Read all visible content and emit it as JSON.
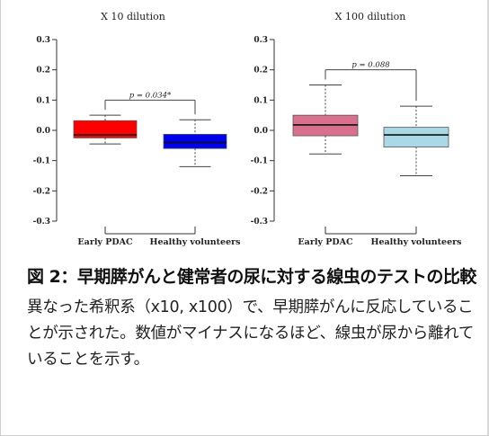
{
  "chart_data": [
    {
      "type": "box",
      "title": "X 10 dilution",
      "ylim": [
        -0.3,
        0.3
      ],
      "yticks": [
        "0.3",
        "0.2",
        "0.1",
        "0.0",
        "-0.1",
        "-0.2",
        "-0.3"
      ],
      "categories": [
        "Early PDAC",
        "Healthy volunteers"
      ],
      "boxes": [
        {
          "category": "Early PDAC",
          "min": -0.045,
          "q1": -0.025,
          "median": -0.015,
          "q3": 0.032,
          "max": 0.05,
          "color": "#ff0000"
        },
        {
          "category": "Healthy volunteers",
          "min": -0.12,
          "q1": -0.06,
          "median": -0.04,
          "q3": -0.013,
          "max": 0.035,
          "color": "#0000ee"
        }
      ],
      "annotation": "p = 0.034*",
      "annotation_y": 0.1
    },
    {
      "type": "box",
      "title": "X 100 dilution",
      "ylim": [
        -0.3,
        0.3
      ],
      "yticks": [
        "0.3",
        "0.2",
        "0.1",
        "0.0",
        "-0.1",
        "-0.2",
        "-0.3"
      ],
      "categories": [
        "Early PDAC",
        "Healthy volunteers"
      ],
      "boxes": [
        {
          "category": "Early PDAC",
          "min": -0.078,
          "q1": -0.018,
          "median": 0.018,
          "q3": 0.05,
          "max": 0.15,
          "color": "#d9708e"
        },
        {
          "category": "Healthy volunteers",
          "min": -0.15,
          "q1": -0.055,
          "median": -0.015,
          "q3": 0.01,
          "max": 0.08,
          "color": "#a9d8e6"
        }
      ],
      "annotation": "p = 0.088",
      "annotation_y": 0.2
    }
  ],
  "caption": {
    "title": "図 2：早期膵がんと健常者の尿に対する線虫のテストの比較",
    "body": "異なった希釈系（x10, x100）で、早期膵がんに反応していることが示された。数値がマイナスになるほど、線虫が尿から離れていることを示す。"
  }
}
